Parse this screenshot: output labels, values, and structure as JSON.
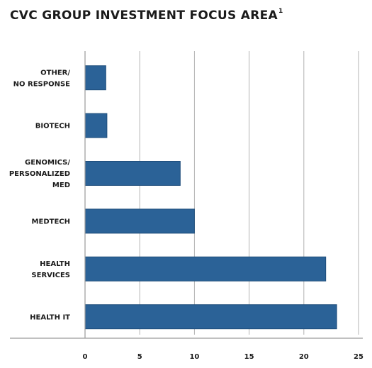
{
  "colors": {
    "bar": "#2b6297",
    "bar_stroke": "#1f4e7c",
    "grid": "#b3b3b3",
    "axis": "#9a9a9a",
    "text": "#1b1b1b"
  },
  "chart_data": {
    "type": "bar",
    "orientation": "horizontal",
    "title": "CVC GROUP INVESTMENT FOCUS AREA",
    "title_superscript": "1",
    "xlabel": "",
    "ylabel": "",
    "xlim": [
      0,
      25
    ],
    "x_ticks": [
      0,
      5,
      10,
      15,
      20,
      25
    ],
    "grid": "vertical",
    "legend": "none",
    "categories": [
      [
        "OTHER/",
        "NO RESPONSE"
      ],
      [
        "BIOTECH"
      ],
      [
        "GENOMICS/",
        "PERSONALIZED",
        "MED"
      ],
      [
        "MEDTECH"
      ],
      [
        "HEALTH",
        "SERVICES"
      ],
      [
        "HEALTH IT"
      ]
    ],
    "values": [
      1.9,
      2,
      8.7,
      10,
      22,
      23
    ]
  }
}
